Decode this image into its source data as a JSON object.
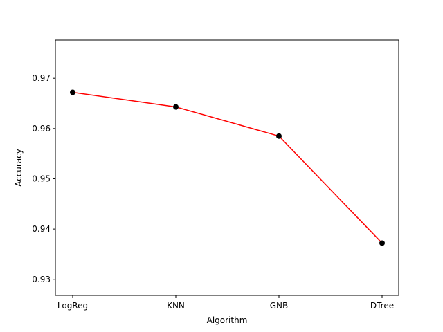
{
  "chart_data": {
    "type": "line",
    "title": "",
    "xlabel": "Algorithm",
    "ylabel": "Accuracy",
    "categories": [
      "LogReg",
      "KNN",
      "GNB",
      "DTree"
    ],
    "series": [
      {
        "values": [
          0.9672,
          0.9643,
          0.9585,
          0.9372
        ],
        "line_color": "#ff0000",
        "marker_color": "#000000"
      }
    ],
    "ylim": [
      0.9268,
      0.9776
    ],
    "yticks": [
      0.93,
      0.94,
      0.95,
      0.96,
      0.97
    ],
    "ytick_labels": [
      "0.93",
      "0.94",
      "0.95",
      "0.96",
      "0.97"
    ],
    "grid": false,
    "legend": false
  }
}
